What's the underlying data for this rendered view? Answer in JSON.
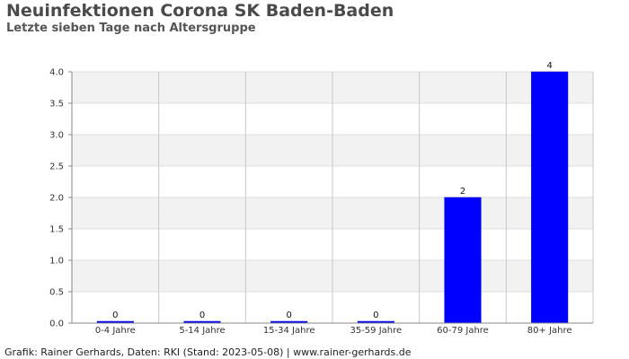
{
  "header": {
    "title": "Neuinfektionen Corona SK Baden-Baden",
    "subtitle": "Letzte sieben Tage nach Altersgruppe"
  },
  "footer": {
    "text": "Grafik: Rainer Gerhards, Daten: RKI (Stand: 2023-05-08) | www.rainer-gerhards.de"
  },
  "colors": {
    "bar": "#0000ff",
    "band_light": "#ffffff",
    "band_dark": "#f2f2f2",
    "grid": "#dddddd",
    "separator": "#c8c8c8",
    "axis": "#888888"
  },
  "chart_data": {
    "type": "bar",
    "title": "Neuinfektionen Corona SK Baden-Baden",
    "subtitle": "Letzte sieben Tage nach Altersgruppe",
    "categories": [
      "0-4 Jahre",
      "5-14 Jahre",
      "15-34 Jahre",
      "35-59 Jahre",
      "60-79 Jahre",
      "80+ Jahre"
    ],
    "values": [
      0,
      0,
      0,
      0,
      2,
      4
    ],
    "data_labels": [
      "0",
      "0",
      "0",
      "0",
      "2",
      "4"
    ],
    "xlabel": "",
    "ylabel": "",
    "ylim": [
      0,
      4
    ],
    "yticks": [
      "0.0",
      "0.5",
      "1.0",
      "1.5",
      "2.0",
      "2.5",
      "3.0",
      "3.5",
      "4.0"
    ],
    "grid": true,
    "legend": "none"
  }
}
